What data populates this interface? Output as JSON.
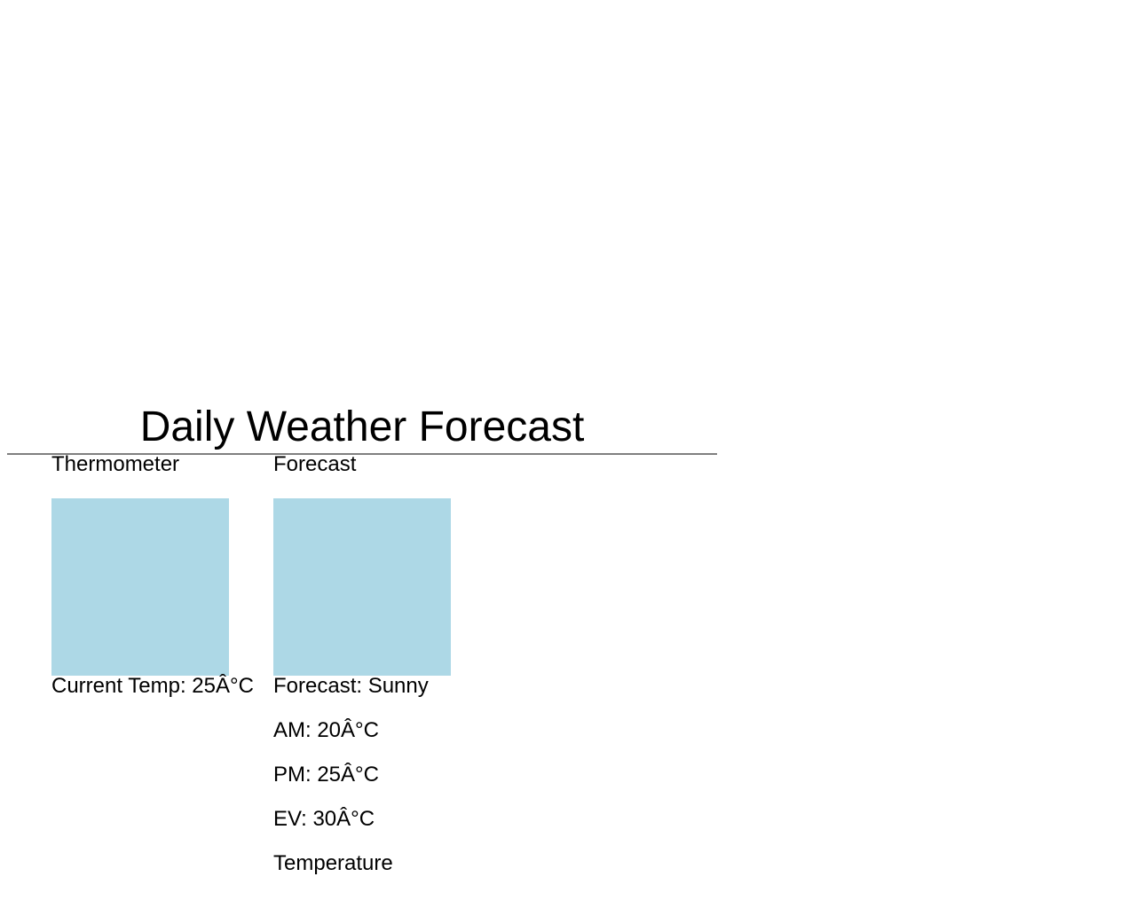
{
  "page": {
    "title": "Daily Weather Forecast"
  },
  "thermometer": {
    "heading": "Thermometer",
    "current_temp": "Current Temp: 25Â°C",
    "panel_color": "#add8e6"
  },
  "forecast": {
    "heading": "Forecast",
    "summary": "Forecast: Sunny",
    "am": "AM: 20Â°C",
    "pm": "PM: 25Â°C",
    "ev": "EV: 30Â°C",
    "temperature_label": "Temperature",
    "panel_color": "#add8e6"
  }
}
